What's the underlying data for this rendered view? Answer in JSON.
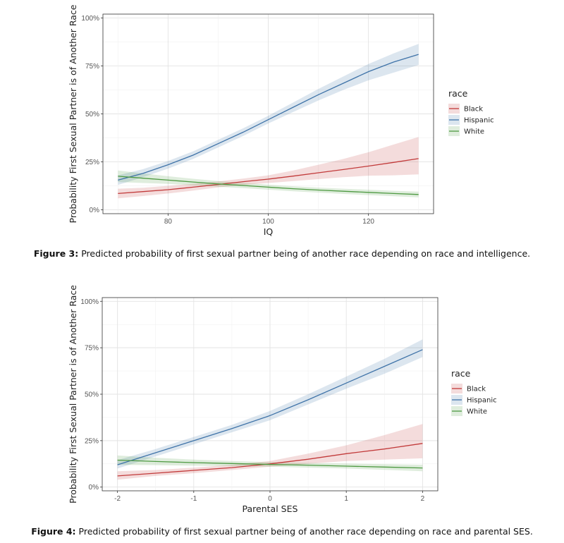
{
  "colors": {
    "Black": "#c23b3b",
    "Hispanic": "#3f73a8",
    "White": "#4f9a43"
  },
  "legend_title": "race",
  "captions": [
    {
      "label": "Figure 3:",
      "text": "Predicted probability of first sexual partner being of another race depending on race and intelligence."
    },
    {
      "label": "Figure 4:",
      "text": "Predicted probability of first sexual partner being of another race depending on race and parental SES."
    }
  ],
  "chart_data": [
    {
      "type": "line",
      "xlabel": "IQ",
      "ylabel": "Probability First Sexual Partner is of Another Race",
      "xlim": [
        67,
        133
      ],
      "ylim": [
        -0.02,
        1.02
      ],
      "xticks": [
        80,
        100,
        120
      ],
      "xtick_labels": [
        "80",
        "100",
        "120"
      ],
      "yticks": [
        0,
        0.25,
        0.5,
        0.75,
        1.0
      ],
      "ytick_labels": [
        "0%",
        "25%",
        "50%",
        "75%",
        "100%"
      ],
      "grid": true,
      "legend_position": "right",
      "x": [
        70,
        75,
        80,
        85,
        90,
        95,
        100,
        105,
        110,
        115,
        120,
        125,
        130
      ],
      "series": [
        {
          "name": "Black",
          "values": [
            0.085,
            0.095,
            0.105,
            0.118,
            0.132,
            0.147,
            0.16,
            0.176,
            0.193,
            0.21,
            0.228,
            0.247,
            0.267
          ],
          "lower": [
            0.06,
            0.072,
            0.085,
            0.1,
            0.117,
            0.13,
            0.14,
            0.15,
            0.16,
            0.17,
            0.178,
            0.18,
            0.185
          ],
          "upper": [
            0.11,
            0.115,
            0.125,
            0.136,
            0.148,
            0.163,
            0.18,
            0.205,
            0.235,
            0.265,
            0.3,
            0.34,
            0.38
          ]
        },
        {
          "name": "Hispanic",
          "values": [
            0.155,
            0.19,
            0.235,
            0.285,
            0.345,
            0.405,
            0.47,
            0.535,
            0.6,
            0.66,
            0.72,
            0.77,
            0.81
          ],
          "lower": [
            0.13,
            0.17,
            0.215,
            0.265,
            0.325,
            0.385,
            0.45,
            0.51,
            0.57,
            0.625,
            0.675,
            0.715,
            0.755
          ],
          "upper": [
            0.18,
            0.212,
            0.255,
            0.305,
            0.365,
            0.425,
            0.49,
            0.56,
            0.63,
            0.695,
            0.76,
            0.815,
            0.865
          ]
        },
        {
          "name": "White",
          "values": [
            0.175,
            0.165,
            0.155,
            0.145,
            0.135,
            0.127,
            0.118,
            0.11,
            0.103,
            0.097,
            0.091,
            0.085,
            0.08
          ],
          "lower": [
            0.145,
            0.14,
            0.135,
            0.128,
            0.12,
            0.113,
            0.105,
            0.097,
            0.09,
            0.083,
            0.077,
            0.071,
            0.065
          ],
          "upper": [
            0.205,
            0.19,
            0.175,
            0.162,
            0.15,
            0.141,
            0.131,
            0.123,
            0.116,
            0.11,
            0.105,
            0.099,
            0.095
          ]
        }
      ]
    },
    {
      "type": "line",
      "xlabel": "Parental SES",
      "ylabel": "Probability First Sexual Partner is of Another Race",
      "xlim": [
        -2.2,
        2.2
      ],
      "ylim": [
        -0.02,
        1.02
      ],
      "xticks": [
        -2,
        -1,
        0,
        1,
        2
      ],
      "xtick_labels": [
        "-2",
        "-1",
        "0",
        "1",
        "2"
      ],
      "yticks": [
        0,
        0.25,
        0.5,
        0.75,
        1.0
      ],
      "ytick_labels": [
        "0%",
        "25%",
        "50%",
        "75%",
        "100%"
      ],
      "grid": true,
      "legend_position": "right",
      "x": [
        -2,
        -1.5,
        -1,
        -0.5,
        0,
        0.5,
        1,
        1.5,
        2
      ],
      "series": [
        {
          "name": "Black",
          "values": [
            0.06,
            0.075,
            0.09,
            0.105,
            0.125,
            0.15,
            0.18,
            0.205,
            0.235
          ],
          "lower": [
            0.04,
            0.06,
            0.075,
            0.092,
            0.11,
            0.125,
            0.14,
            0.148,
            0.155
          ],
          "upper": [
            0.085,
            0.092,
            0.105,
            0.12,
            0.14,
            0.18,
            0.225,
            0.28,
            0.34
          ]
        },
        {
          "name": "Hispanic",
          "values": [
            0.12,
            0.185,
            0.25,
            0.315,
            0.385,
            0.47,
            0.56,
            0.65,
            0.74
          ],
          "lower": [
            0.1,
            0.165,
            0.23,
            0.295,
            0.36,
            0.445,
            0.53,
            0.61,
            0.7
          ],
          "upper": [
            0.145,
            0.205,
            0.27,
            0.335,
            0.41,
            0.5,
            0.595,
            0.69,
            0.795
          ]
        },
        {
          "name": "White",
          "values": [
            0.145,
            0.138,
            0.132,
            0.127,
            0.122,
            0.118,
            0.113,
            0.108,
            0.103
          ],
          "lower": [
            0.12,
            0.118,
            0.115,
            0.113,
            0.11,
            0.105,
            0.1,
            0.093,
            0.085
          ],
          "upper": [
            0.17,
            0.158,
            0.148,
            0.14,
            0.134,
            0.13,
            0.127,
            0.123,
            0.12
          ]
        }
      ]
    }
  ]
}
